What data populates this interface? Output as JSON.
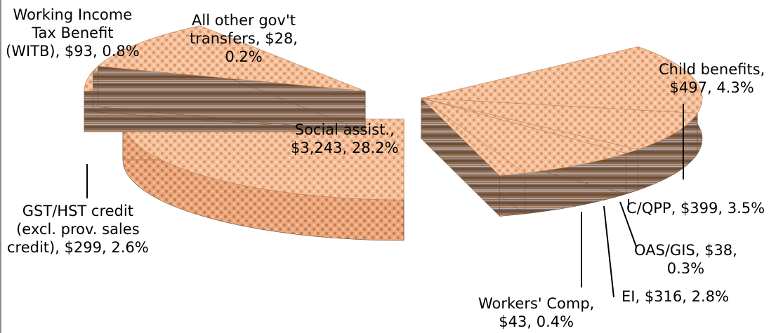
{
  "chart_data": {
    "type": "pie",
    "style": "3D exploded pie with patterned fill",
    "title": "",
    "slices": [
      {
        "name": "Social assist.",
        "value": 3243,
        "percent": 28.2,
        "label_lines": [
          "Social assist.,",
          "$3,243, 28.2%"
        ]
      },
      {
        "name": "Child benefits",
        "value": 497,
        "percent": 4.3,
        "label_lines": [
          "Child benefits,",
          "$497, 4.3%"
        ]
      },
      {
        "name": "C/QPP",
        "value": 399,
        "percent": 3.5,
        "label_lines": [
          "C/QPP, $399, 3.5%"
        ]
      },
      {
        "name": "OAS/GIS",
        "value": 38,
        "percent": 0.3,
        "label_lines": [
          "OAS/GIS, $38,",
          "0.3%"
        ]
      },
      {
        "name": "EI",
        "value": 316,
        "percent": 2.8,
        "label_lines": [
          "EI, $316, 2.8%"
        ]
      },
      {
        "name": "Workers' Comp",
        "value": 43,
        "percent": 0.4,
        "label_lines": [
          "Workers' Comp,",
          "$43, 0.4%"
        ]
      },
      {
        "name": "GST/HST credit (excl. prov. sales credit)",
        "value": 299,
        "percent": 2.6,
        "label_lines": [
          "GST/HST credit",
          "(excl. prov. sales",
          "credit), $299, 2.6%"
        ]
      },
      {
        "name": "Working Income Tax Benefit (WITB)",
        "value": 93,
        "percent": 0.8,
        "label_lines": [
          "Working Income",
          "Tax Benefit",
          "(WITB), $93, 0.8%"
        ]
      },
      {
        "name": "All other gov't transfers",
        "value": 28,
        "percent": 0.2,
        "label_lines": [
          "All other gov't",
          "transfers, $28,",
          "0.2%"
        ]
      }
    ],
    "colors": {
      "light_fill": "#f0b48c",
      "dark_fill": "#7a5a44",
      "accent": "#e8956a"
    }
  }
}
